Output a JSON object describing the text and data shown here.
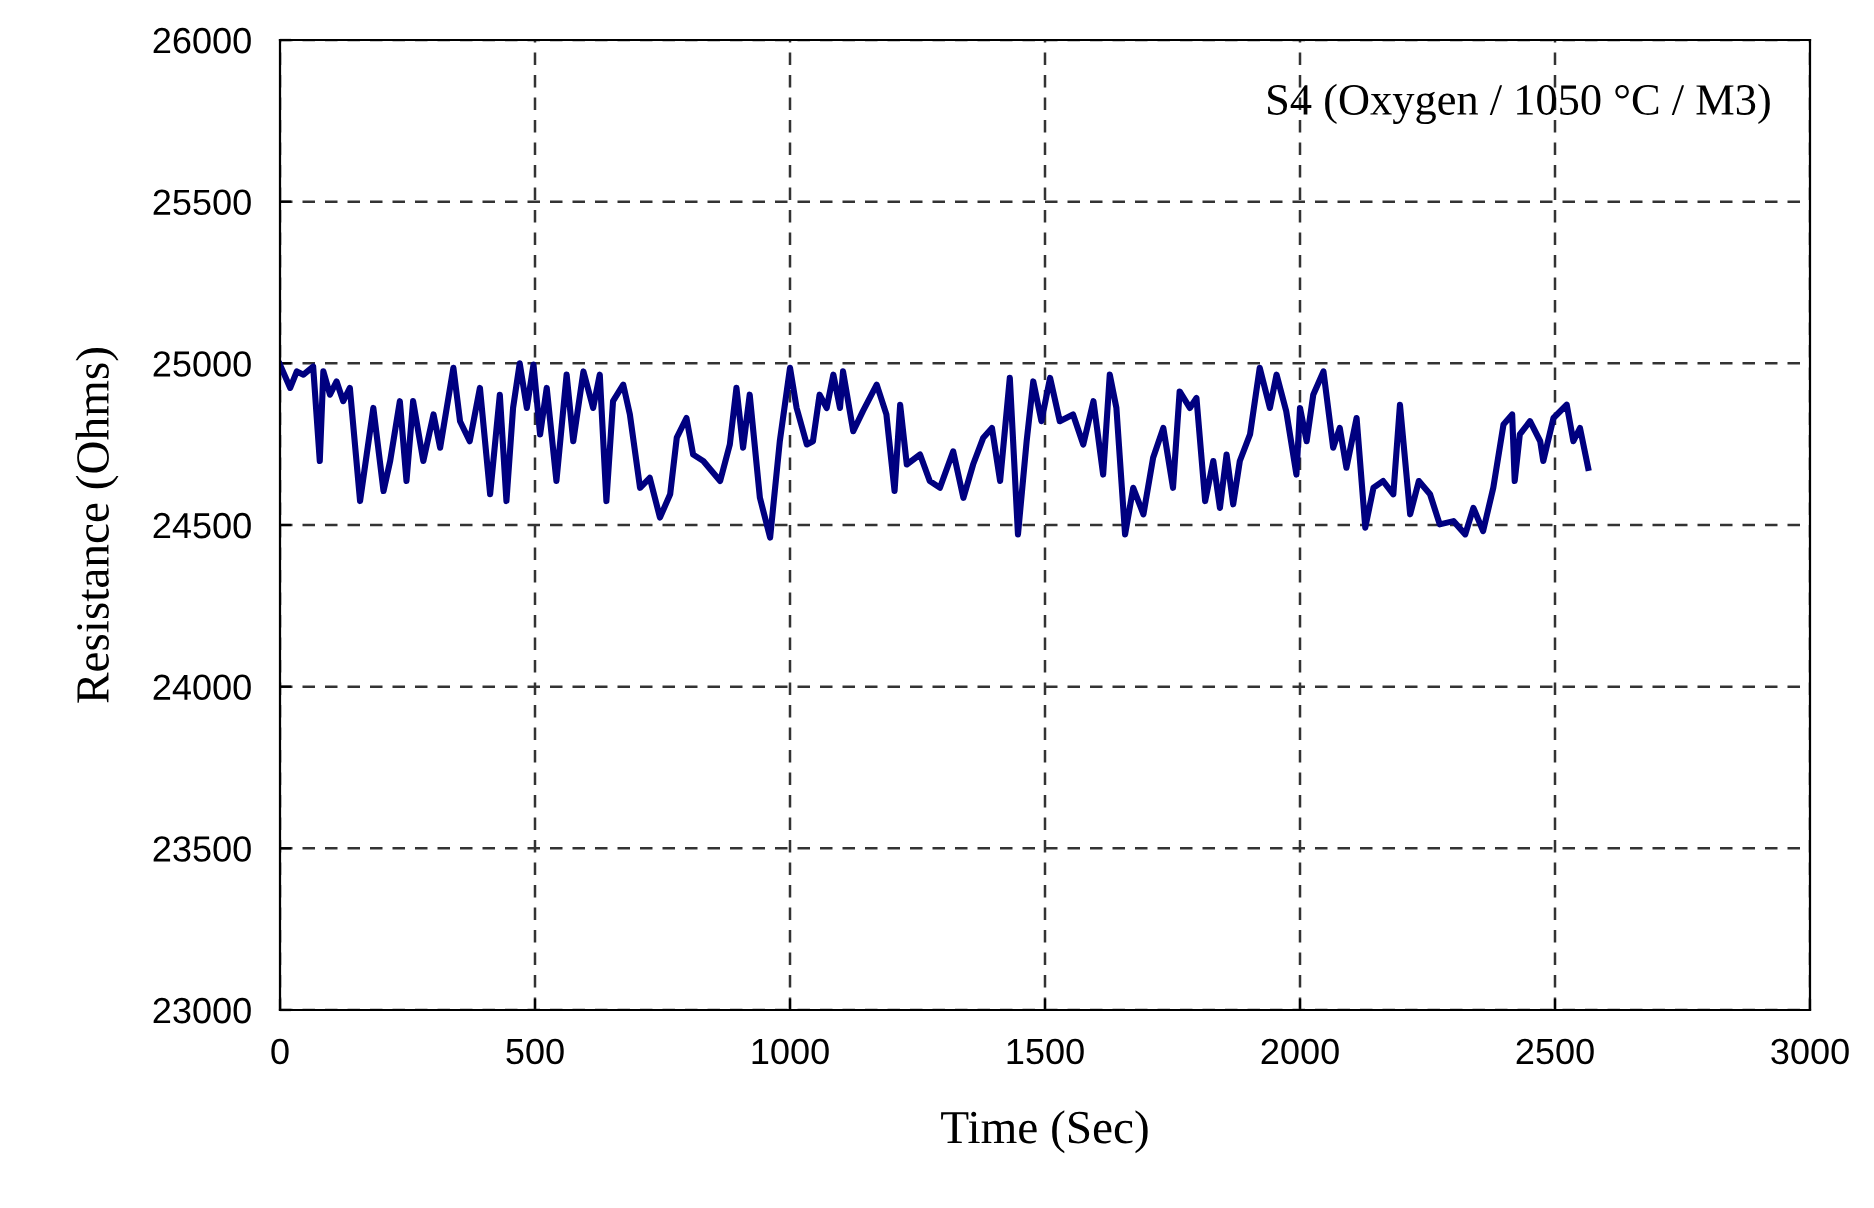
{
  "chart_data": {
    "type": "line",
    "xlabel": "Time (Sec)",
    "ylabel": "Resistance (Ohms)",
    "annotations": [
      "S4 (Oxygen / 1050 °C / M3)"
    ],
    "xlim": [
      0,
      3000
    ],
    "xticks": [
      0,
      500,
      1000,
      1500,
      2000,
      2500,
      3000
    ],
    "ylim": [
      23000,
      26000
    ],
    "yticks": [
      23000,
      23500,
      24000,
      24500,
      25000,
      25500,
      26000
    ],
    "grid": true,
    "marker": "none",
    "line_style": "solid",
    "series": [
      {
        "color": "#000080",
        "x": [
          0,
          20,
          33,
          46,
          65,
          78,
          85,
          98,
          111,
          124,
          137,
          157,
          170,
          183,
          203,
          216,
          235,
          248,
          261,
          281,
          301,
          314,
          340,
          353,
          372,
          392,
          412,
          431,
          444,
          457,
          470,
          484,
          497,
          510,
          523,
          542,
          562,
          575,
          595,
          614,
          627,
          640,
          653,
          673,
          686,
          706,
          725,
          745,
          765,
          778,
          797,
          810,
          830,
          863,
          882,
          895,
          908,
          921,
          941,
          961,
          980,
          1000,
          1013,
          1033,
          1045,
          1058,
          1072,
          1085,
          1098,
          1104,
          1124,
          1143,
          1170,
          1189,
          1205,
          1216,
          1229,
          1255,
          1274,
          1294,
          1320,
          1340,
          1359,
          1379,
          1396,
          1412,
          1431,
          1447,
          1464,
          1477,
          1493,
          1510,
          1529,
          1555,
          1575,
          1595,
          1614,
          1627,
          1640,
          1657,
          1673,
          1693,
          1712,
          1732,
          1751,
          1764,
          1784,
          1797,
          1814,
          1830,
          1843,
          1856,
          1869,
          1882,
          1902,
          1921,
          1941,
          1954,
          1973,
          1993,
          2000,
          2013,
          2026,
          2046,
          2065,
          2078,
          2091,
          2111,
          2128,
          2144,
          2163,
          2183,
          2196,
          2216,
          2233,
          2255,
          2274,
          2301,
          2324,
          2340,
          2359,
          2379,
          2399,
          2416,
          2421,
          2431,
          2451,
          2471,
          2477,
          2497,
          2523,
          2536,
          2549,
          2565
        ],
        "values": [
          24996,
          24924,
          24975,
          24965,
          24990,
          24698,
          24975,
          24903,
          24944,
          24883,
          24924,
          24574,
          24718,
          24862,
          24605,
          24698,
          24883,
          24636,
          24883,
          24698,
          24842,
          24739,
          24986,
          24821,
          24759,
          24924,
          24595,
          24903,
          24574,
          24862,
          25000,
          24862,
          24996,
          24780,
          24924,
          24636,
          24965,
          24759,
          24975,
          24862,
          24965,
          24574,
          24883,
          24934,
          24842,
          24615,
          24646,
          24523,
          24595,
          24770,
          24831,
          24718,
          24698,
          24636,
          24749,
          24924,
          24739,
          24903,
          24584,
          24461,
          24759,
          24986,
          24862,
          24749,
          24759,
          24903,
          24862,
          24965,
          24862,
          24975,
          24790,
          24852,
          24934,
          24842,
          24605,
          24872,
          24687,
          24718,
          24636,
          24615,
          24728,
          24584,
          24687,
          24770,
          24800,
          24636,
          24955,
          24471,
          24759,
          24944,
          24821,
          24955,
          24821,
          24842,
          24749,
          24883,
          24656,
          24965,
          24862,
          24471,
          24615,
          24533,
          24708,
          24800,
          24615,
          24913,
          24862,
          24893,
          24574,
          24698,
          24553,
          24718,
          24564,
          24698,
          24780,
          24986,
          24862,
          24965,
          24852,
          24656,
          24862,
          24759,
          24903,
          24975,
          24739,
          24800,
          24677,
          24831,
          24492,
          24615,
          24636,
          24595,
          24872,
          24533,
          24636,
          24595,
          24502,
          24512,
          24471,
          24553,
          24481,
          24615,
          24811,
          24842,
          24636,
          24780,
          24821,
          24759,
          24698,
          24831,
          24872,
          24759,
          24800,
          24677
        ]
      }
    ]
  }
}
